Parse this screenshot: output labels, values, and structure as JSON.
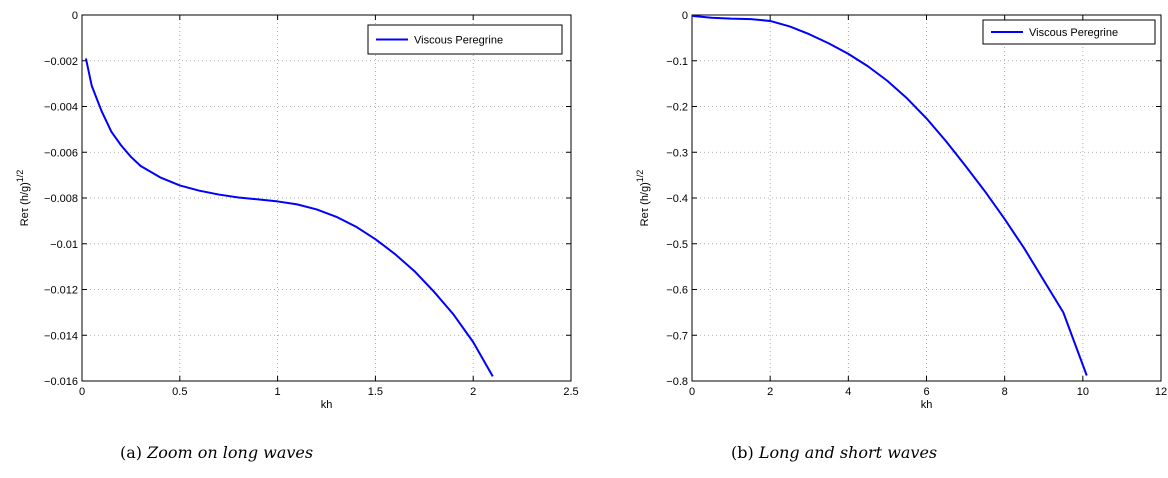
{
  "chart_data": [
    {
      "type": "line",
      "caption_label": "(a)",
      "caption_text": "Zoom on long waves",
      "xlabel": "kh",
      "ylabel_main": "Reτ (h/g)",
      "ylabel_sup": "1/2",
      "xlim": [
        0,
        2.5
      ],
      "ylim": [
        -0.016,
        0
      ],
      "xticks": [
        0,
        0.5,
        1,
        1.5,
        2,
        2.5
      ],
      "xtick_labels": [
        "0",
        "0.5",
        "1",
        "1.5",
        "2",
        "2.5"
      ],
      "yticks": [
        0,
        -0.002,
        -0.004,
        -0.006,
        -0.008,
        -0.01,
        -0.012,
        -0.014,
        -0.016
      ],
      "ytick_labels": [
        "0",
        "−0.002",
        "−0.004",
        "−0.006",
        "−0.008",
        "−0.01",
        "−0.012",
        "−0.014",
        "−0.016"
      ],
      "grid": true,
      "legend_position": "top-right",
      "series": [
        {
          "name": "Viscous Peregrine",
          "color": "#0000ff",
          "x": [
            0.02,
            0.05,
            0.1,
            0.15,
            0.2,
            0.25,
            0.3,
            0.4,
            0.5,
            0.6,
            0.7,
            0.8,
            0.9,
            1.0,
            1.1,
            1.2,
            1.3,
            1.4,
            1.5,
            1.6,
            1.7,
            1.8,
            1.9,
            2.0,
            2.1
          ],
          "y": [
            -0.0019,
            -0.0031,
            -0.0042,
            -0.0051,
            -0.0057,
            -0.0062,
            -0.0066,
            -0.0071,
            -0.00745,
            -0.00768,
            -0.00785,
            -0.00798,
            -0.00806,
            -0.00815,
            -0.00828,
            -0.0085,
            -0.00882,
            -0.00925,
            -0.0098,
            -0.01045,
            -0.0112,
            -0.0121,
            -0.0131,
            -0.0143,
            -0.0158
          ]
        }
      ]
    },
    {
      "type": "line",
      "caption_label": "(b)",
      "caption_text": "Long and short waves",
      "xlabel": "kh",
      "ylabel_main": "Reτ (h/g)",
      "ylabel_sup": "1/2",
      "xlim": [
        0,
        12
      ],
      "ylim": [
        -0.8,
        0
      ],
      "xticks": [
        0,
        2,
        4,
        6,
        8,
        10,
        12
      ],
      "xtick_labels": [
        "0",
        "2",
        "4",
        "6",
        "8",
        "10",
        "12"
      ],
      "yticks": [
        0,
        -0.1,
        -0.2,
        -0.3,
        -0.4,
        -0.5,
        -0.6,
        -0.7,
        -0.8
      ],
      "ytick_labels": [
        "0",
        "−0.1",
        "−0.2",
        "−0.3",
        "−0.4",
        "−0.5",
        "−0.6",
        "−0.7",
        "−0.8"
      ],
      "grid": true,
      "legend_position": "top-right",
      "series": [
        {
          "name": "Viscous Peregrine",
          "color": "#0000ff",
          "x": [
            0,
            0.5,
            1,
            1.5,
            2,
            2.5,
            3,
            3.5,
            4,
            4.5,
            5,
            5.5,
            6,
            6.5,
            7,
            7.5,
            8,
            8.5,
            9,
            9.5,
            10.1
          ],
          "y": [
            -0.002,
            -0.006,
            -0.008,
            -0.009,
            -0.013,
            -0.025,
            -0.042,
            -0.062,
            -0.085,
            -0.112,
            -0.144,
            -0.182,
            -0.226,
            -0.276,
            -0.33,
            -0.386,
            -0.446,
            -0.51,
            -0.58,
            -0.65,
            -0.788
          ]
        }
      ]
    }
  ]
}
